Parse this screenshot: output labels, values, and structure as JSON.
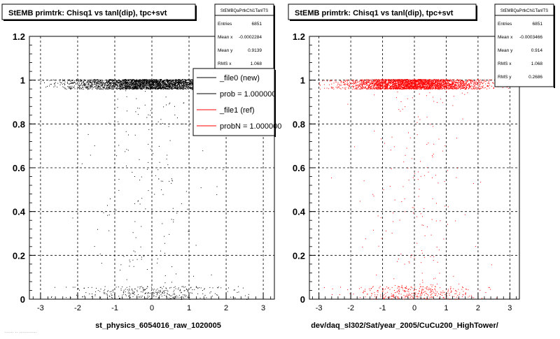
{
  "footer_text": "....... .. .............",
  "chart_data": [
    {
      "type": "scatter",
      "title": "StEMB primtrk: Chisq1 vs tanl(dip), tpc+svt",
      "xlabel": "st_physics_6054016_raw_1020005",
      "ylabel": "",
      "xlim": [
        -3.3,
        3.3
      ],
      "ylim": [
        0,
        1.2
      ],
      "grid": true,
      "point_color": "#000000",
      "x_ticks": [
        "-3",
        "-2",
        "-1",
        "0",
        "1",
        "2",
        "3"
      ],
      "y_ticks": [
        "0",
        "0.2",
        "0.4",
        "0.6",
        "0.8",
        "1",
        "1.2"
      ],
      "stats": {
        "name": "StEMBQaPrtkChi1TanlTS",
        "rows": [
          {
            "label": "Entries",
            "value": "6851"
          },
          {
            "label": "Mean x",
            "value": "-0.0002284"
          },
          {
            "label": "Mean y",
            "value": "0.9139"
          },
          {
            "label": "RMS x",
            "value": "1.068"
          }
        ]
      },
      "legend": {
        "position": "top-right",
        "entries": [
          {
            "label": "_file0 (new)",
            "color": "#000000"
          },
          {
            "label": "prob = 1.000000",
            "color": "#000000"
          },
          {
            "label": "_file1 (ref)",
            "color": "#ff0000"
          },
          {
            "label": "probN = 1.000000",
            "color": "#ff0000"
          }
        ]
      },
      "distribution": {
        "entries": 6851,
        "x_center": 0,
        "x_rms": 1.068,
        "band_y": [
          0.96,
          1.005
        ],
        "bottom_y": [
          0.0,
          0.06
        ],
        "band_fraction": 0.88,
        "bottom_fraction": 0.08,
        "x_range": [
          -3.0,
          3.0
        ]
      }
    },
    {
      "type": "scatter",
      "title": "StEMB primtrk: Chisq1 vs tanl(dip), tpc+svt",
      "xlabel": "dev/daq_sl302/Sat/year_2005/CuCu200_HighTower/",
      "ylabel": "",
      "xlim": [
        -3.3,
        3.3
      ],
      "ylim": [
        0,
        1.2
      ],
      "grid": true,
      "point_color": "#ff0000",
      "x_ticks": [
        "-3",
        "-2",
        "-1",
        "0",
        "1",
        "2",
        "3"
      ],
      "y_ticks": [
        "0",
        "0.2",
        "0.4",
        "0.6",
        "0.8",
        "1",
        "1.2"
      ],
      "stats": {
        "name": "StEMBQaPrtkChi1TanlTS",
        "rows": [
          {
            "label": "Entries",
            "value": "6851"
          },
          {
            "label": "Mean x",
            "value": "-0.0003466"
          },
          {
            "label": "Mean y",
            "value": "0.914"
          },
          {
            "label": "RMS x",
            "value": "1.068"
          },
          {
            "label": "RMS y",
            "value": "0.2686"
          }
        ]
      },
      "distribution": {
        "entries": 6851,
        "x_center": 0,
        "x_rms": 1.068,
        "band_y": [
          0.96,
          1.005
        ],
        "bottom_y": [
          0.0,
          0.06
        ],
        "band_fraction": 0.88,
        "bottom_fraction": 0.08,
        "x_range": [
          -3.0,
          3.0
        ]
      }
    }
  ]
}
